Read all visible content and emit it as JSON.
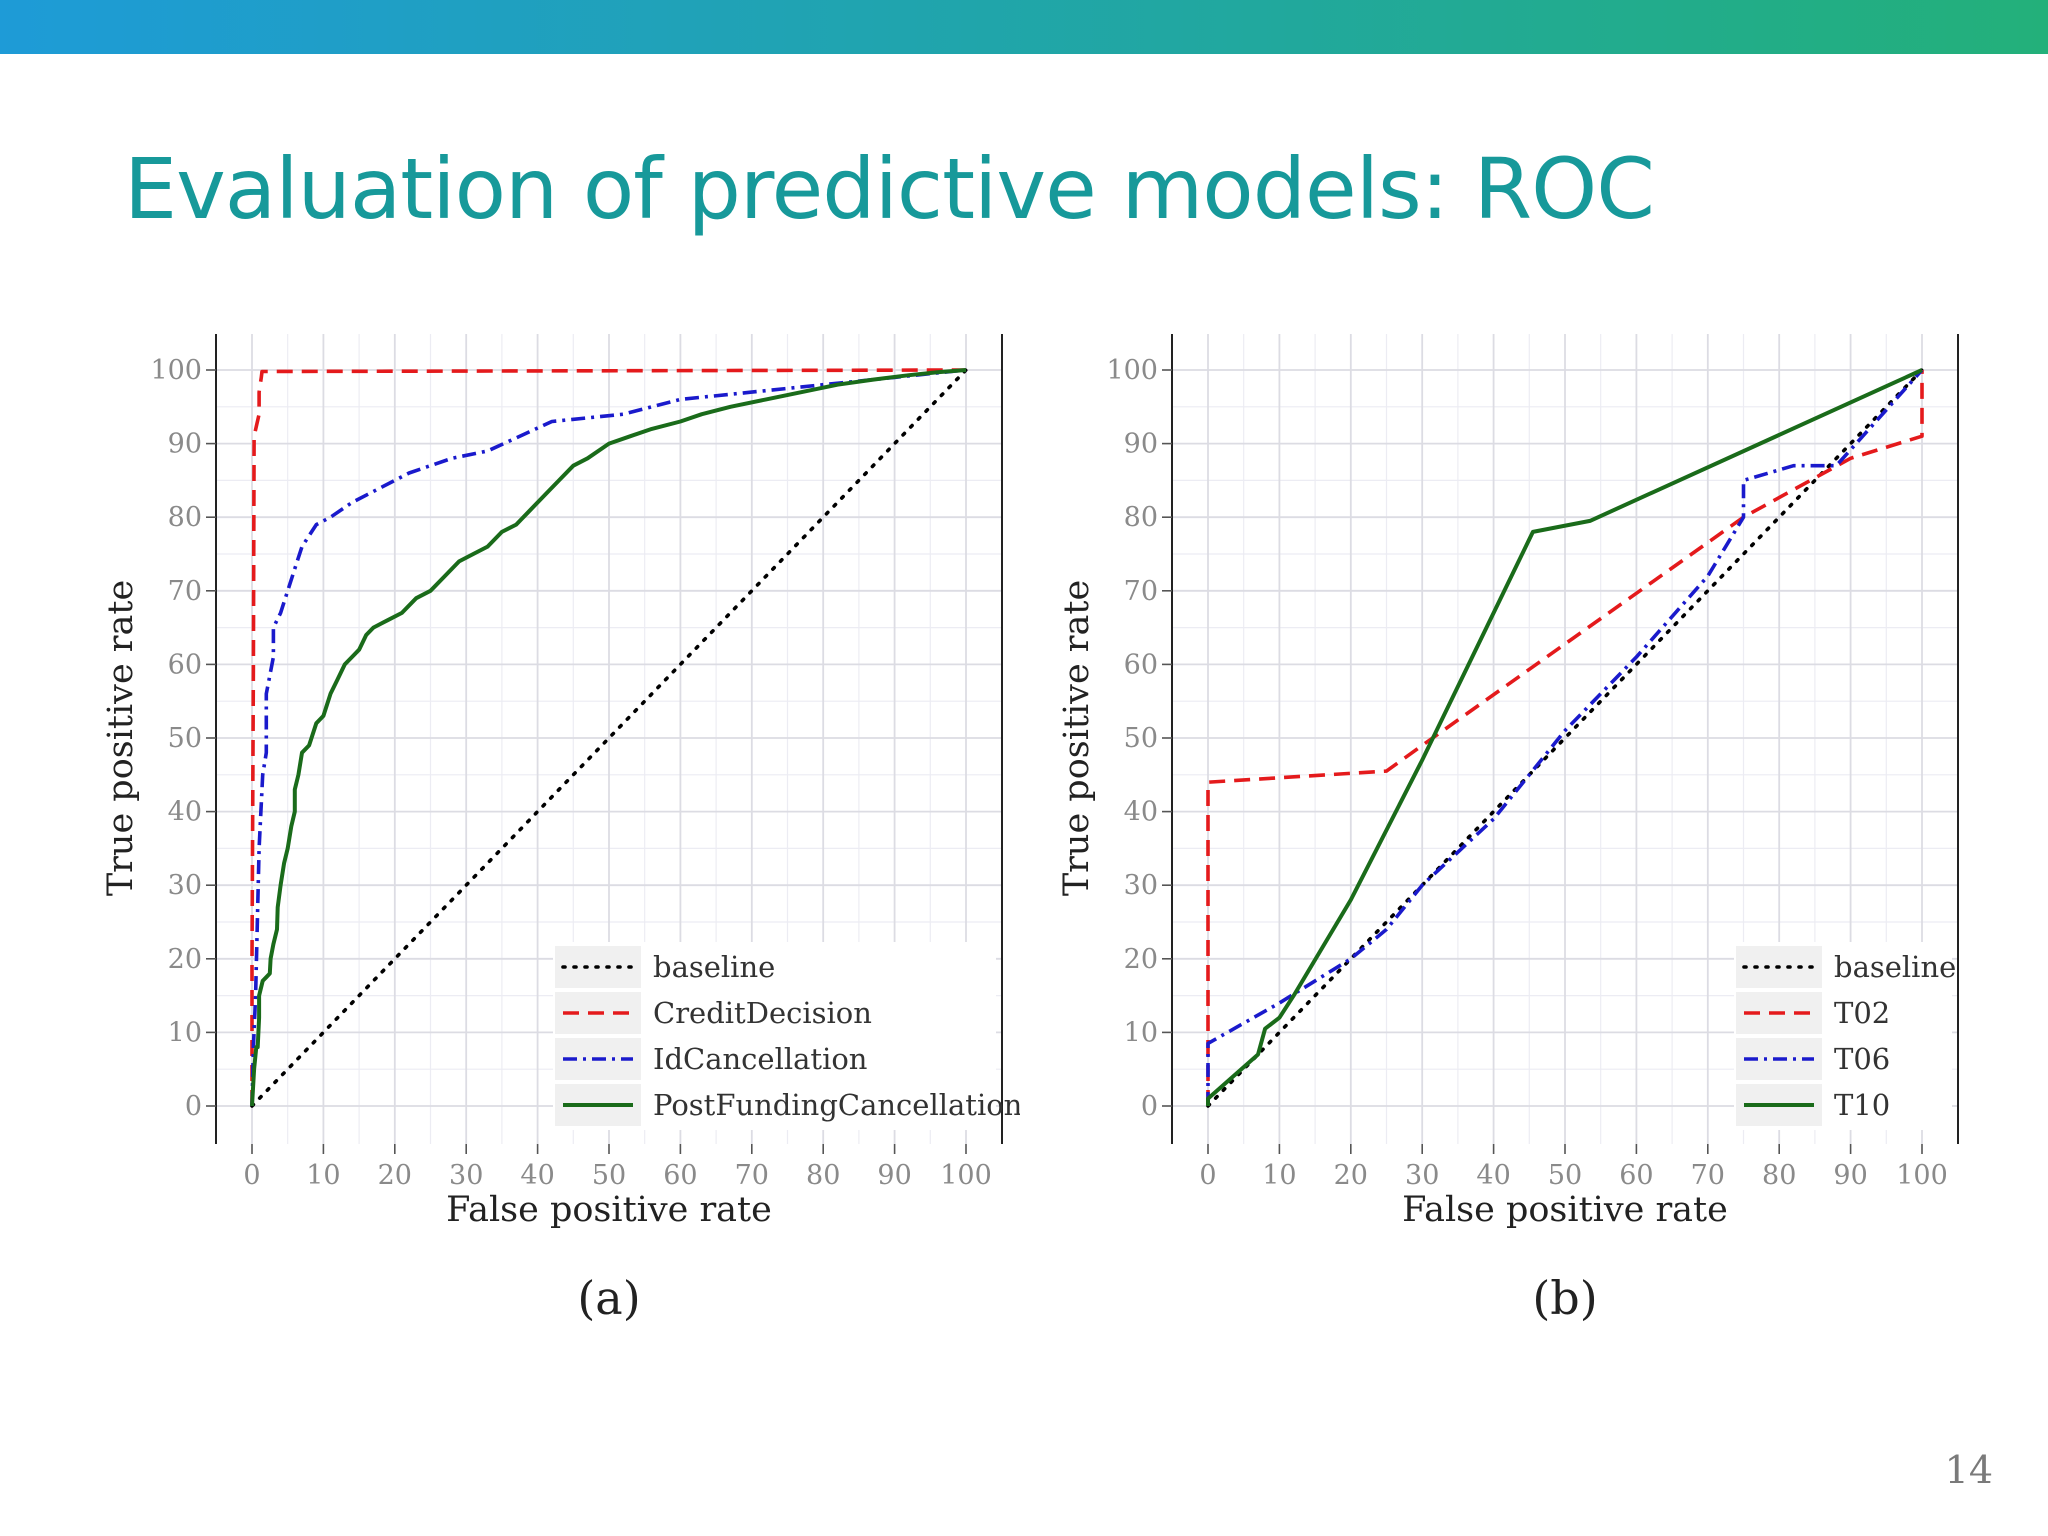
{
  "slide": {
    "title": "Evaluation of predictive models: ROC",
    "page_number": "14"
  },
  "colors": {
    "title": "#17999A",
    "bar_start": "#1E9BD7",
    "bar_end": "#23B07A"
  },
  "chart_data": [
    {
      "type": "line",
      "panel_label": "(a)",
      "xlabel": "False positive rate",
      "ylabel": "True positive rate",
      "xlim": [
        0,
        100
      ],
      "ylim": [
        0,
        100
      ],
      "xticks": [
        0,
        10,
        20,
        30,
        40,
        50,
        60,
        70,
        80,
        90,
        100
      ],
      "yticks": [
        0,
        10,
        20,
        30,
        40,
        50,
        60,
        70,
        80,
        90,
        100
      ],
      "grid": true,
      "legend_position": "bottom-right",
      "series": [
        {
          "name": "baseline",
          "color": "#000000",
          "dash": "dotted",
          "points": [
            [
              0,
              0
            ],
            [
              100,
              100
            ]
          ]
        },
        {
          "name": "CreditDecision",
          "color": "#E41A1C",
          "dash": "dashed",
          "points": [
            [
              0,
              0
            ],
            [
              0,
              20
            ],
            [
              0.2,
              60
            ],
            [
              0.3,
              91
            ],
            [
              1,
              94
            ],
            [
              1,
              97
            ],
            [
              1.3,
              99
            ],
            [
              1.4,
              99.8
            ],
            [
              100,
              100
            ]
          ]
        },
        {
          "name": "IdCancellation",
          "color": "#1A1ACC",
          "dash": "dashdot",
          "points": [
            [
              0,
              0
            ],
            [
              0.2,
              8
            ],
            [
              0.5,
              15
            ],
            [
              1,
              35
            ],
            [
              1.5,
              45
            ],
            [
              2,
              48
            ],
            [
              2,
              56
            ],
            [
              3,
              61
            ],
            [
              3,
              65
            ],
            [
              4,
              67
            ],
            [
              5,
              70
            ],
            [
              6,
              73
            ],
            [
              7,
              76
            ],
            [
              9,
              79
            ],
            [
              11,
              80
            ],
            [
              14,
              82
            ],
            [
              18,
              84
            ],
            [
              22,
              86
            ],
            [
              28,
              88
            ],
            [
              33,
              89
            ],
            [
              42,
              93
            ],
            [
              52,
              94
            ],
            [
              60,
              96
            ],
            [
              70,
              97
            ],
            [
              80,
              98
            ],
            [
              90,
              99
            ],
            [
              100,
              100
            ]
          ]
        },
        {
          "name": "PostFundingCancellation",
          "color": "#1A6B1A",
          "dash": "solid",
          "points": [
            [
              0,
              0
            ],
            [
              0.3,
              5
            ],
            [
              0.6,
              8
            ],
            [
              0.8,
              8
            ],
            [
              1,
              12
            ],
            [
              1,
              15
            ],
            [
              1.5,
              17
            ],
            [
              2,
              17.5
            ],
            [
              2.5,
              18
            ],
            [
              2.6,
              20
            ],
            [
              3,
              22
            ],
            [
              3.5,
              24
            ],
            [
              3.6,
              27
            ],
            [
              4,
              30
            ],
            [
              4.5,
              33
            ],
            [
              5,
              35
            ],
            [
              5.5,
              38
            ],
            [
              6,
              40
            ],
            [
              6,
              43
            ],
            [
              6.5,
              45
            ],
            [
              7,
              48
            ],
            [
              8,
              49
            ],
            [
              9,
              52
            ],
            [
              10,
              53
            ],
            [
              11,
              56
            ],
            [
              12,
              58
            ],
            [
              13,
              60
            ],
            [
              14,
              61
            ],
            [
              15,
              62
            ],
            [
              16,
              64
            ],
            [
              17,
              65
            ],
            [
              19,
              66
            ],
            [
              21,
              67
            ],
            [
              23,
              69
            ],
            [
              25,
              70
            ],
            [
              27,
              72
            ],
            [
              29,
              74
            ],
            [
              31,
              75
            ],
            [
              33,
              76
            ],
            [
              35,
              78
            ],
            [
              37,
              79
            ],
            [
              39,
              81
            ],
            [
              41,
              83
            ],
            [
              43,
              85
            ],
            [
              45,
              87
            ],
            [
              47,
              88
            ],
            [
              50,
              90
            ],
            [
              53,
              91
            ],
            [
              56,
              92
            ],
            [
              60,
              93
            ],
            [
              63,
              94
            ],
            [
              67,
              95
            ],
            [
              72,
              96
            ],
            [
              77,
              97
            ],
            [
              82,
              98
            ],
            [
              87,
              98.7
            ],
            [
              92,
              99.3
            ],
            [
              96,
              99.7
            ],
            [
              100,
              100
            ]
          ]
        }
      ]
    },
    {
      "type": "line",
      "panel_label": "(b)",
      "xlabel": "False positive rate",
      "ylabel": "True positive rate",
      "xlim": [
        0,
        100
      ],
      "ylim": [
        0,
        100
      ],
      "xticks": [
        0,
        10,
        20,
        30,
        40,
        50,
        60,
        70,
        80,
        90,
        100
      ],
      "yticks": [
        0,
        10,
        20,
        30,
        40,
        50,
        60,
        70,
        80,
        90,
        100
      ],
      "grid": true,
      "legend_position": "bottom-right",
      "series": [
        {
          "name": "baseline",
          "color": "#000000",
          "dash": "dotted",
          "points": [
            [
              0,
              0
            ],
            [
              100,
              100
            ]
          ]
        },
        {
          "name": "T02",
          "color": "#E41A1C",
          "dash": "dashed",
          "points": [
            [
              0,
              0
            ],
            [
              0,
              44
            ],
            [
              25,
              45.5
            ],
            [
              30,
              49
            ],
            [
              75,
              80
            ],
            [
              90,
              88
            ],
            [
              100,
              91
            ],
            [
              100,
              100
            ]
          ]
        },
        {
          "name": "T06",
          "color": "#1A1ACC",
          "dash": "dashdot",
          "points": [
            [
              0,
              0
            ],
            [
              0,
              8.5
            ],
            [
              10,
              14
            ],
            [
              20,
              20
            ],
            [
              25,
              24
            ],
            [
              30,
              30
            ],
            [
              40,
              39
            ],
            [
              50,
              51
            ],
            [
              60,
              61
            ],
            [
              70,
              72
            ],
            [
              75,
              80
            ],
            [
              75,
              85
            ],
            [
              82,
              87
            ],
            [
              88,
              87
            ],
            [
              100,
              100
            ]
          ]
        },
        {
          "name": "T10",
          "color": "#1A6B1A",
          "dash": "solid",
          "points": [
            [
              0,
              0
            ],
            [
              0,
              1
            ],
            [
              7,
              7
            ],
            [
              8,
              10.5
            ],
            [
              10,
              12
            ],
            [
              12,
              15
            ],
            [
              20,
              28
            ],
            [
              30,
              47
            ],
            [
              45.5,
              78
            ],
            [
              53.5,
              79.5
            ],
            [
              100,
              100
            ]
          ]
        }
      ]
    }
  ]
}
